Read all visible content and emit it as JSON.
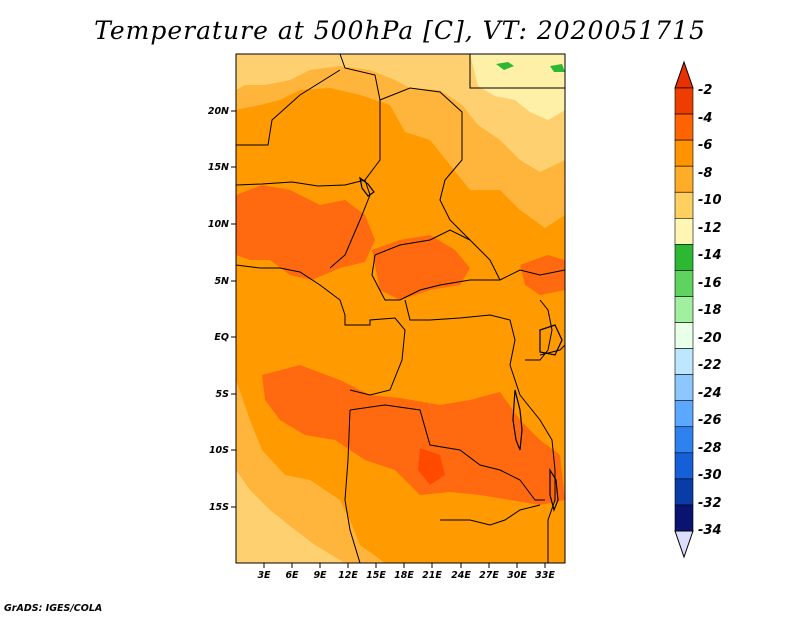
{
  "title": "Temperature at 500hPa [C], VT: 2020051715",
  "credit": "GrADS: IGES/COLA",
  "lat_labels": [
    "20N",
    "15N",
    "10N",
    "5N",
    "EQ",
    "5S",
    "10S",
    "15S"
  ],
  "lon_labels": [
    "3E",
    "6E",
    "9E",
    "12E",
    "15E",
    "18E",
    "21E",
    "24E",
    "27E",
    "30E",
    "33E"
  ],
  "colorbar": {
    "labels": [
      "-2",
      "-4",
      "-6",
      "-8",
      "-10",
      "-12",
      "-14",
      "-16",
      "-18",
      "-20",
      "-22",
      "-24",
      "-26",
      "-28",
      "-30",
      "-32",
      "-34"
    ],
    "colors": [
      "#ee3d00",
      "#ff6200",
      "#ff9400",
      "#ffad28",
      "#ffd05f",
      "#fff6b4",
      "#2db833",
      "#5fd35f",
      "#a0f0a0",
      "#e8ffe8",
      "#bde7ff",
      "#8cc8ff",
      "#5aa8ff",
      "#2d82f0",
      "#1560d8",
      "#0a3ca8",
      "#0a1470"
    ],
    "arrow_top_color": "#e83000",
    "arrow_bottom_color": "#dcdcff"
  },
  "map_colors": {
    "background": "#ff9a00",
    "warm": "#ff6a10",
    "hot": "#ff4a00",
    "cool": "#ffb43c",
    "cooler": "#ffd070",
    "coolest": "#fff0a8",
    "green": "#2db833",
    "border": "#000000"
  }
}
